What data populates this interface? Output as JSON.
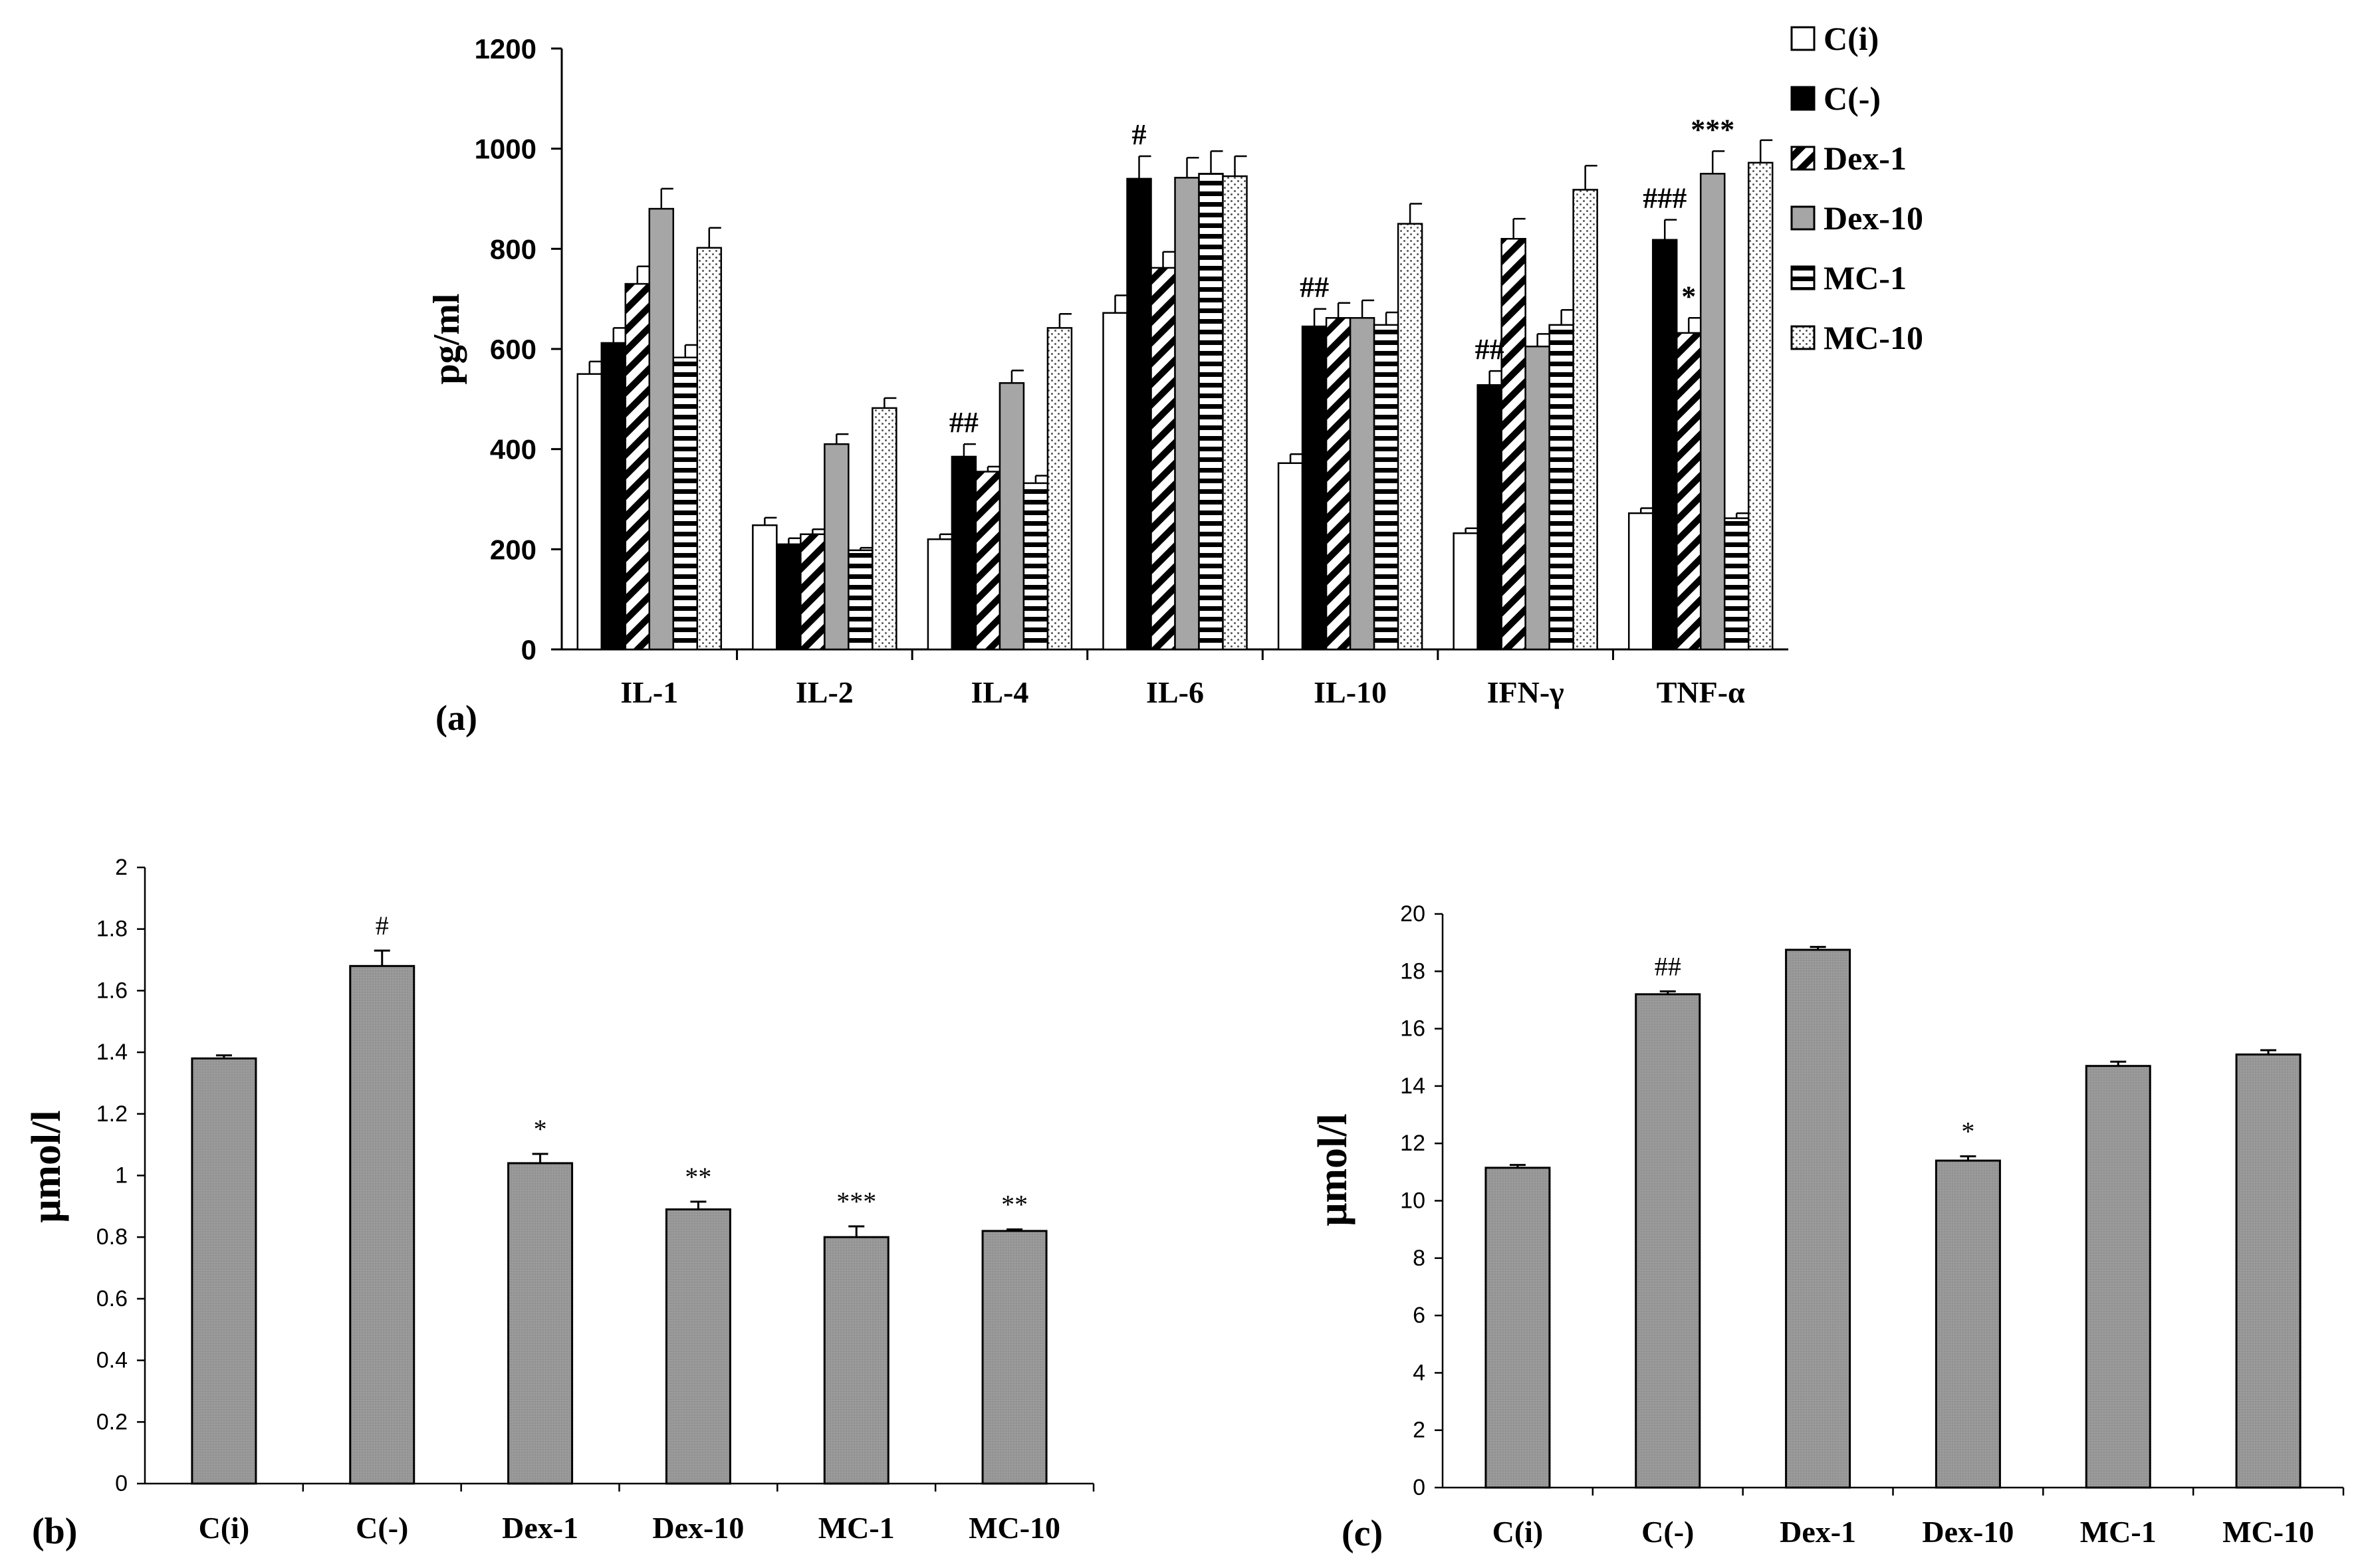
{
  "chart_data": [
    {
      "panel_label": "(a)",
      "type": "bar",
      "ylabel": "pg/ml",
      "ylim": [
        0,
        1200
      ],
      "yticks": [
        0,
        200,
        400,
        600,
        800,
        1000,
        1200
      ],
      "categories": [
        "IL-1",
        "IL-2",
        "IL-4",
        "IL-6",
        "IL-10",
        "IFN-γ",
        "TNF-α"
      ],
      "legend_position": "top-right",
      "series": [
        {
          "name": "C(i)",
          "pattern": "white",
          "values": [
            550,
            248,
            220,
            672,
            372,
            232,
            272
          ],
          "errors": [
            25,
            15,
            10,
            35,
            18,
            10,
            10
          ]
        },
        {
          "name": "C(-)",
          "pattern": "black",
          "values": [
            612,
            210,
            385,
            940,
            645,
            528,
            818
          ],
          "errors": [
            30,
            12,
            25,
            45,
            35,
            28,
            40
          ]
        },
        {
          "name": "Dex-1",
          "pattern": "diagonal",
          "values": [
            730,
            230,
            355,
            762,
            662,
            820,
            632
          ],
          "errors": [
            35,
            10,
            10,
            32,
            30,
            40,
            30
          ]
        },
        {
          "name": "Dex-10",
          "pattern": "gray",
          "values": [
            880,
            410,
            532,
            942,
            662,
            605,
            950
          ],
          "errors": [
            40,
            20,
            25,
            40,
            35,
            25,
            45
          ]
        },
        {
          "name": "MC-1",
          "pattern": "horizontal",
          "values": [
            583,
            198,
            332,
            950,
            648,
            648,
            262
          ],
          "errors": [
            25,
            5,
            15,
            45,
            25,
            30,
            10
          ]
        },
        {
          "name": "MC-10",
          "pattern": "dots",
          "values": [
            802,
            482,
            642,
            945,
            850,
            918,
            972
          ],
          "errors": [
            40,
            20,
            28,
            40,
            40,
            48,
            45
          ]
        }
      ],
      "annotations": [
        {
          "category": "IL-4",
          "series": "C(-)",
          "text": "##"
        },
        {
          "category": "IL-6",
          "series": "C(-)",
          "text": "#"
        },
        {
          "category": "IL-10",
          "series": "C(-)",
          "text": "##"
        },
        {
          "category": "IFN-γ",
          "series": "C(-)",
          "text": "##"
        },
        {
          "category": "TNF-α",
          "series": "C(-)",
          "text": "###"
        },
        {
          "category": "TNF-α",
          "series": "Dex-1",
          "text": "*"
        },
        {
          "category": "TNF-α",
          "series": "Dex-10",
          "text": "***"
        }
      ]
    },
    {
      "panel_label": "(b)",
      "type": "bar",
      "ylabel": "μmol/l",
      "ylim": [
        0,
        2
      ],
      "yticks": [
        "0",
        "0.2",
        "0.4",
        "0.6",
        "0.8",
        "1",
        "1.2",
        "1.4",
        "1.6",
        "1.8",
        "2"
      ],
      "categories": [
        "C(i)",
        "C(-)",
        "Dex-1",
        "Dex-10",
        "MC-1",
        "MC-10"
      ],
      "values": [
        1.38,
        1.68,
        1.04,
        0.89,
        0.8,
        0.82
      ],
      "errors": [
        0.01,
        0.05,
        0.03,
        0.025,
        0.035,
        0.005
      ],
      "annotations": [
        "",
        "#",
        "*",
        "**",
        "***",
        "**"
      ],
      "bar_color": "#8a8a8a"
    },
    {
      "panel_label": "(c)",
      "type": "bar",
      "ylabel": "μmol/l",
      "ylim": [
        0,
        20
      ],
      "yticks": [
        "0",
        "2",
        "4",
        "6",
        "8",
        "10",
        "12",
        "14",
        "16",
        "18",
        "20"
      ],
      "categories": [
        "C(i)",
        "C(-)",
        "Dex-1",
        "Dex-10",
        "MC-1",
        "MC-10"
      ],
      "values": [
        11.15,
        17.2,
        18.75,
        11.4,
        14.7,
        15.1
      ],
      "errors": [
        0.1,
        0.1,
        0.1,
        0.15,
        0.15,
        0.15
      ],
      "annotations": [
        "",
        "##",
        "",
        "*",
        "",
        ""
      ],
      "bar_color": "#9c9c9c"
    }
  ]
}
